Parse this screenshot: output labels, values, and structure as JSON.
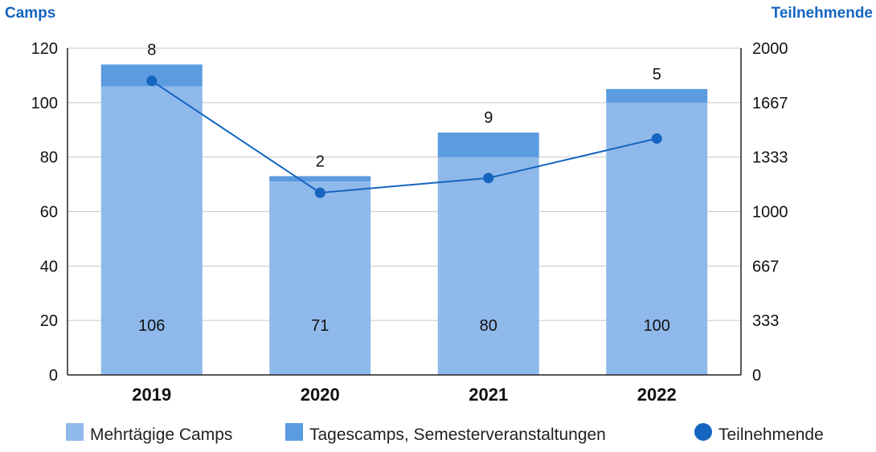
{
  "chart_data": {
    "type": "bar",
    "stacked": true,
    "categories": [
      "2019",
      "2020",
      "2021",
      "2022"
    ],
    "series": [
      {
        "name": "Mehrtägige Camps",
        "values": [
          106,
          71,
          80,
          100
        ],
        "color": "#8fb9ea",
        "axis": "left",
        "kind": "bar"
      },
      {
        "name": "Tagescamps, Semesterveranstaltungen",
        "values": [
          8,
          2,
          9,
          5
        ],
        "color": "#5b9be0",
        "axis": "left",
        "kind": "bar"
      },
      {
        "name": "Teilnehmende",
        "values": [
          1800,
          1115,
          1205,
          1447
        ],
        "color": "#1565c0",
        "axis": "right",
        "kind": "line"
      }
    ],
    "bar_labels": {
      "bottom": [
        "106",
        "71",
        "80",
        "100"
      ],
      "top": [
        "8",
        "2",
        "9",
        "5"
      ]
    },
    "left_axis": {
      "title": "Camps",
      "ylim": [
        0,
        120
      ],
      "ticks": [
        "0",
        "20",
        "40",
        "60",
        "80",
        "100",
        "120"
      ]
    },
    "right_axis": {
      "title": "Teilnehmende",
      "ylim": [
        0,
        2000
      ],
      "ticks": [
        "0",
        "333",
        "667",
        "1000",
        "1333",
        "1667",
        "2000"
      ]
    },
    "grid": true,
    "legend_position": "bottom"
  }
}
